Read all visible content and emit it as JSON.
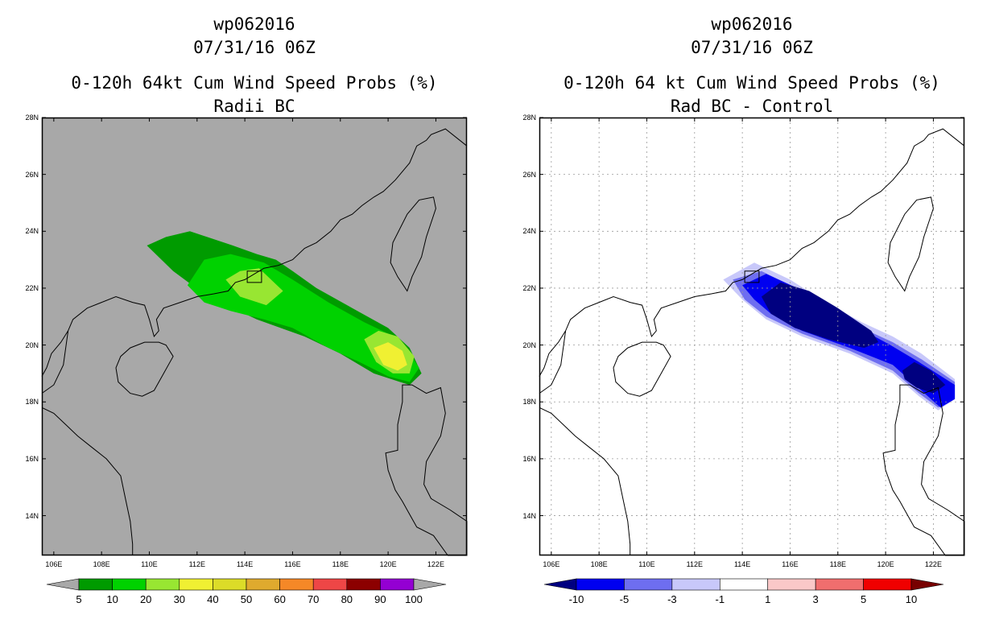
{
  "left_panel": {
    "title1": "wp062016",
    "title2": "07/31/16 06Z",
    "title3": "0-120h 64kt Cum Wind Speed Probs (%)",
    "title4": "Radii BC",
    "background_color": "#a8a8a8",
    "colorbar": {
      "colors": [
        "#009b00",
        "#00d200",
        "#98e632",
        "#f0f032",
        "#dcdc28",
        "#dfaa2e",
        "#f58827",
        "#ee4646",
        "#8c0000",
        "#9400d3"
      ],
      "labels": [
        "5",
        "10",
        "20",
        "30",
        "40",
        "50",
        "60",
        "70",
        "80",
        "90",
        "100"
      ]
    }
  },
  "right_panel": {
    "title1": "wp062016",
    "title2": "07/31/16 06Z",
    "title3": "0-120h 64 kt Cum Wind Speed Probs (%)",
    "title4": "Rad BC - Control",
    "background_color": "#ffffff",
    "colorbar": {
      "colors": [
        "#0000f0",
        "#6e6ef0",
        "#c8c8fa",
        "#ffffff",
        "#fac8c8",
        "#f06e6e",
        "#f00000"
      ],
      "end_colors": [
        "#000080",
        "#780000"
      ],
      "labels": [
        "-10",
        "-5",
        "-3",
        "-1",
        "1",
        "3",
        "5",
        "10"
      ]
    }
  },
  "axes": {
    "lon_labels": [
      "106E",
      "108E",
      "110E",
      "112E",
      "114E",
      "116E",
      "118E",
      "120E",
      "122E"
    ],
    "lat_labels": [
      "28N",
      "26N",
      "24N",
      "22N",
      "20N",
      "18N",
      "16N",
      "14N"
    ]
  },
  "map": {
    "lon_range": [
      105.5,
      123.3
    ],
    "lat_range": [
      12.6,
      28.0
    ]
  }
}
